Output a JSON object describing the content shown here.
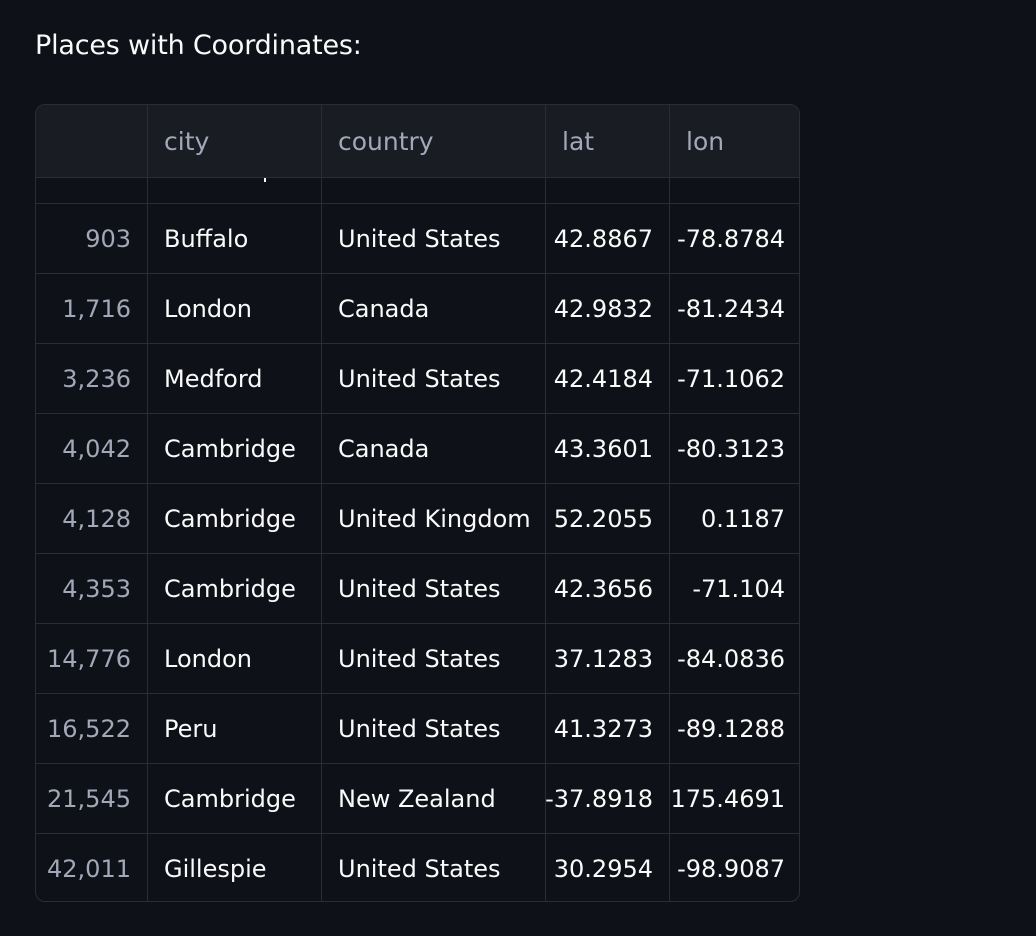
{
  "heading": "Places with Coordinates:",
  "table": {
    "columns": [
      "",
      "city",
      "country",
      "lat",
      "lon"
    ],
    "rows": [
      {
        "index": "903",
        "city": "Buffalo",
        "country": "United States",
        "lat": "42.8867",
        "lon": "-78.8784"
      },
      {
        "index": "1,716",
        "city": "London",
        "country": "Canada",
        "lat": "42.9832",
        "lon": "-81.2434"
      },
      {
        "index": "3,236",
        "city": "Medford",
        "country": "United States",
        "lat": "42.4184",
        "lon": "-71.1062"
      },
      {
        "index": "4,042",
        "city": "Cambridge",
        "country": "Canada",
        "lat": "43.3601",
        "lon": "-80.3123"
      },
      {
        "index": "4,128",
        "city": "Cambridge",
        "country": "United Kingdom",
        "lat": "52.2055",
        "lon": "0.1187"
      },
      {
        "index": "4,353",
        "city": "Cambridge",
        "country": "United States",
        "lat": "42.3656",
        "lon": "-71.104"
      },
      {
        "index": "14,776",
        "city": "London",
        "country": "United States",
        "lat": "37.1283",
        "lon": "-84.0836"
      },
      {
        "index": "16,522",
        "city": "Peru",
        "country": "United States",
        "lat": "41.3273",
        "lon": "-89.1288"
      },
      {
        "index": "21,545",
        "city": "Cambridge",
        "country": "New Zealand",
        "lat": "-37.8918",
        "lon": "175.4691"
      },
      {
        "index": "42,011",
        "city": "Gillespie",
        "country": "United States",
        "lat": "30.2954",
        "lon": "-98.9087"
      }
    ]
  }
}
